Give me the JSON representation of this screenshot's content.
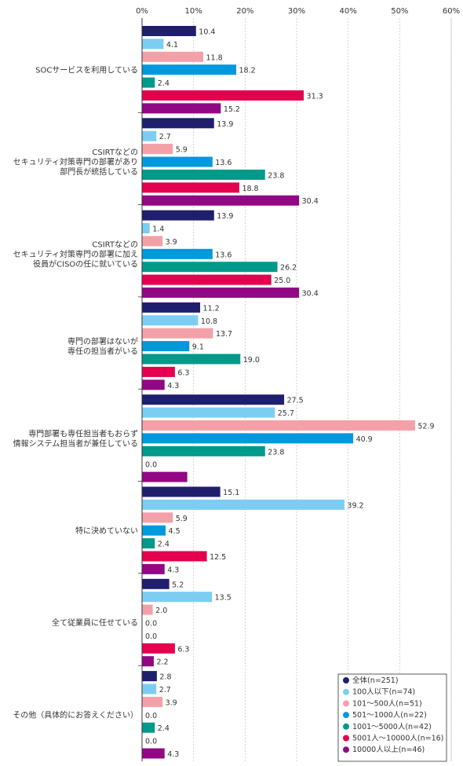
{
  "chart_data": {
    "type": "bar",
    "orientation": "horizontal",
    "xlim": [
      0,
      60
    ],
    "x_ticks": [
      "0%",
      "10%",
      "20%",
      "30%",
      "40%",
      "50%",
      "60%"
    ],
    "grid": true,
    "legend_position": "bottom-right",
    "categories": [
      "SOCサービスを利用している",
      "CSIRTなどの\nセキュリティ対策専門の部署があり\n部門長が統括している",
      "CSIRTなどの\nセキュリティ対策専門の部署に加え\n役員がCISOの任に就いている",
      "専門の部署はないが\n専任の担当者がいる",
      "専門部署も専任担当者もおらず\n情報システム担当者が兼任している",
      "特に決めていない",
      "全て従業員に任せている",
      "その他（具体的にお答えください）"
    ],
    "series": [
      {
        "name": "全体(n=251)",
        "color": "#1f1f6e",
        "values": [
          10.4,
          13.9,
          13.9,
          11.2,
          27.5,
          15.1,
          5.2,
          2.8
        ],
        "labels": [
          "10.4",
          "13.9",
          "13.9",
          "11.2",
          "27.5",
          "15.1",
          "5.2",
          "2.8"
        ]
      },
      {
        "name": "100人以下(n=74)",
        "color": "#7ccdf4",
        "values": [
          4.1,
          2.7,
          1.4,
          10.8,
          25.7,
          39.2,
          13.5,
          2.7
        ],
        "labels": [
          "4.1",
          "2.7",
          "1.4",
          "10.8",
          "25.7",
          "39.2",
          "13.5",
          "2.7"
        ]
      },
      {
        "name": "101～500人(n=51)",
        "color": "#f4a0a8",
        "values": [
          11.8,
          5.9,
          3.9,
          13.7,
          52.9,
          5.9,
          2.0,
          3.9
        ],
        "labels": [
          "11.8",
          "5.9",
          "3.9",
          "13.7",
          "52.9",
          "5.9",
          "2.0",
          "3.9"
        ]
      },
      {
        "name": "501～1000人(n=22)",
        "color": "#0099dd",
        "values": [
          18.2,
          13.6,
          13.6,
          9.1,
          40.9,
          4.5,
          0.0,
          0.0
        ],
        "labels": [
          "18.2",
          "13.6",
          "13.6",
          "9.1",
          "40.9",
          "4.5",
          "0.0",
          "0.0"
        ]
      },
      {
        "name": "1001～5000人(n=42)",
        "color": "#009a8a",
        "values": [
          2.4,
          23.8,
          26.2,
          19.0,
          23.8,
          2.4,
          0.0,
          2.4
        ],
        "labels": [
          "2.4",
          "23.8",
          "26.2",
          "19.0",
          "23.8",
          "2.4",
          "0.0",
          "2.4"
        ]
      },
      {
        "name": "5001人～10000人(n=16)",
        "color": "#e5004f",
        "values": [
          31.3,
          18.8,
          25.0,
          6.3,
          0.0,
          12.5,
          6.3,
          0.0
        ],
        "labels": [
          "31.3",
          "18.8",
          "25.0",
          "6.3",
          "0.0",
          "12.5",
          "6.3",
          "0.0"
        ]
      },
      {
        "name": "10000人以上(n=46)",
        "color": "#920783",
        "values": [
          15.2,
          30.4,
          30.4,
          4.3,
          8.7,
          4.3,
          2.2,
          4.3
        ],
        "labels": [
          "15.2",
          "30.4",
          "30.4",
          "4.3",
          "",
          "4.3",
          "2.2",
          "4.3"
        ]
      }
    ]
  }
}
